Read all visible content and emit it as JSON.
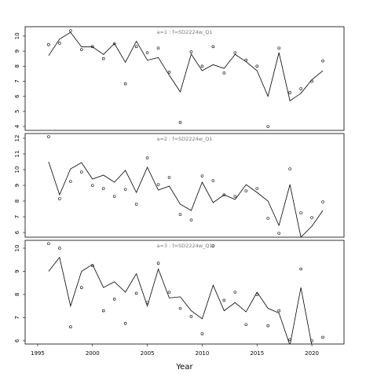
{
  "chart_data": [
    {
      "type": "line",
      "title": "a=1 : f=SD2224w_Q1",
      "x": [
        1996,
        1997,
        1998,
        1999,
        2000,
        2001,
        2002,
        2003,
        2004,
        2005,
        2006,
        2007,
        2008,
        2009,
        2010,
        2011,
        2012,
        2013,
        2014,
        2015,
        2016,
        2017,
        2018,
        2019,
        2020,
        2021
      ],
      "series": [
        {
          "style": "line",
          "color": "#000000",
          "values": [
            8.7,
            9.8,
            10.25,
            9.28,
            9.28,
            8.78,
            9.5,
            8.26,
            9.65,
            8.4,
            8.57,
            7.4,
            6.3,
            8.8,
            7.7,
            8.1,
            7.85,
            8.78,
            8.3,
            7.7,
            6.0,
            8.9,
            5.7,
            6.2,
            7.1,
            7.7
          ]
        },
        {
          "style": "points",
          "color": "#000000",
          "values": [
            9.43,
            9.53,
            10.36,
            9.1,
            9.3,
            8.5,
            9.5,
            6.83,
            9.3,
            8.9,
            9.2,
            7.6,
            4.27,
            8.95,
            8.0,
            9.3,
            7.55,
            8.9,
            8.4,
            8.0,
            4.0,
            9.2,
            6.25,
            6.5,
            7.0,
            8.35
          ]
        }
      ],
      "xlim": [
        1993.86,
        2022.93
      ],
      "ylim": [
        3.74,
        10.62
      ],
      "yticks": [
        4,
        5,
        6,
        7,
        8,
        9,
        10
      ]
    },
    {
      "type": "line",
      "title": "a=2 : f=SD2224w_Q1",
      "x": [
        1996,
        1997,
        1998,
        1999,
        2000,
        2001,
        2002,
        2003,
        2004,
        2005,
        2006,
        2007,
        2008,
        2009,
        2010,
        2011,
        2012,
        2013,
        2014,
        2015,
        2016,
        2017,
        2018,
        2019,
        2020,
        2021
      ],
      "series": [
        {
          "style": "line",
          "color": "#000000",
          "values": [
            10.5,
            8.4,
            10.05,
            10.45,
            9.4,
            9.65,
            9.2,
            9.95,
            8.55,
            10.15,
            8.7,
            8.95,
            7.8,
            7.4,
            9.2,
            7.9,
            8.4,
            8.1,
            9.05,
            8.55,
            8.0,
            6.45,
            9.05,
            5.7,
            6.4,
            7.4
          ]
        },
        {
          "style": "points",
          "color": "#000000",
          "values": [
            12.1,
            8.15,
            9.25,
            9.85,
            9.0,
            8.8,
            8.3,
            8.75,
            7.8,
            10.75,
            9.05,
            9.5,
            7.15,
            6.8,
            9.6,
            9.3,
            8.4,
            8.3,
            8.65,
            8.8,
            6.9,
            5.95,
            10.05,
            7.25,
            6.95,
            7.95
          ]
        }
      ],
      "xlim": [
        1993.86,
        2022.93
      ],
      "ylim": [
        5.7,
        12.3
      ],
      "yticks": [
        6,
        7,
        8,
        9,
        10,
        11,
        12
      ]
    },
    {
      "type": "line",
      "title": "a=3 : f=SD2224w_Q1",
      "x": [
        1996,
        1997,
        1998,
        1999,
        2000,
        2001,
        2002,
        2003,
        2004,
        2005,
        2006,
        2007,
        2008,
        2009,
        2010,
        2011,
        2012,
        2013,
        2014,
        2015,
        2016,
        2017,
        2018,
        2019,
        2020,
        2021
      ],
      "series": [
        {
          "style": "line",
          "color": "#000000",
          "values": [
            9.0,
            9.6,
            7.5,
            9.0,
            9.3,
            8.3,
            8.55,
            8.1,
            8.9,
            7.5,
            9.1,
            7.85,
            7.9,
            7.3,
            6.95,
            8.4,
            7.3,
            7.65,
            7.25,
            8.1,
            7.4,
            7.2,
            5.8,
            8.3,
            5.8,
            null
          ]
        },
        {
          "style": "points",
          "color": "#000000",
          "values": [
            10.2,
            10.0,
            6.6,
            8.3,
            9.25,
            7.3,
            7.8,
            6.75,
            8.05,
            7.65,
            9.35,
            8.1,
            7.4,
            7.05,
            6.3,
            10.1,
            7.75,
            8.1,
            6.7,
            8.0,
            6.65,
            7.3,
            6.05,
            9.1,
            6.0,
            6.15
          ]
        }
      ],
      "xlim": [
        1993.86,
        2022.93
      ],
      "ylim": [
        5.86,
        10.34
      ],
      "yticks": [
        6,
        7,
        8,
        9,
        10
      ],
      "xticks": [
        1995,
        2000,
        2005,
        2010,
        2015,
        2020
      ],
      "xlabel": "Year"
    }
  ]
}
